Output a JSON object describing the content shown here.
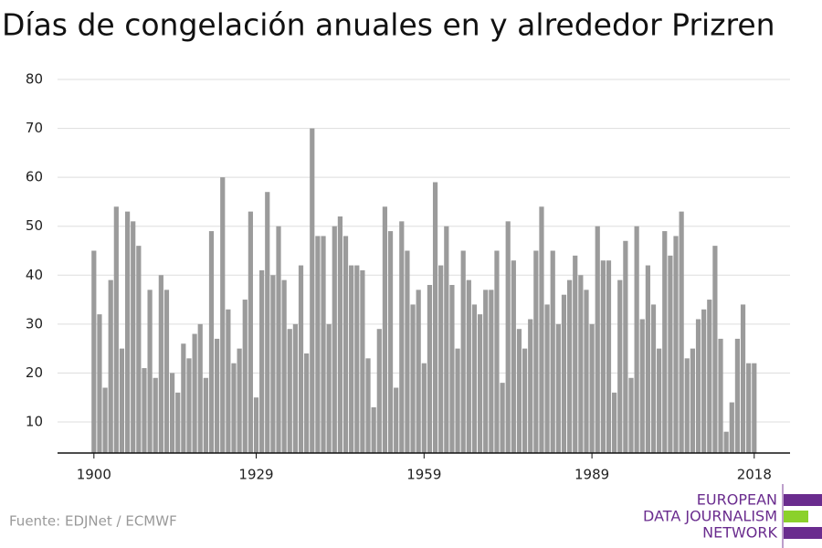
{
  "chart_data": {
    "type": "bar",
    "title": "Días de congelación anuales en y alrededor Prizren",
    "source": "Fuente: EDJNet / ECMWF",
    "logo": [
      "EUROPEAN",
      "DATA JOURNALISM",
      "NETWORK"
    ],
    "color": "#9b9b9b",
    "x": [
      1900,
      1901,
      1902,
      1903,
      1904,
      1905,
      1906,
      1907,
      1908,
      1909,
      1910,
      1911,
      1912,
      1913,
      1914,
      1915,
      1916,
      1917,
      1918,
      1919,
      1920,
      1921,
      1922,
      1923,
      1924,
      1925,
      1926,
      1927,
      1928,
      1929,
      1930,
      1931,
      1932,
      1933,
      1934,
      1935,
      1936,
      1937,
      1938,
      1939,
      1940,
      1941,
      1942,
      1943,
      1944,
      1945,
      1946,
      1947,
      1948,
      1949,
      1950,
      1951,
      1952,
      1953,
      1954,
      1955,
      1956,
      1957,
      1958,
      1959,
      1960,
      1961,
      1962,
      1963,
      1964,
      1965,
      1966,
      1967,
      1968,
      1969,
      1970,
      1971,
      1972,
      1973,
      1974,
      1975,
      1976,
      1977,
      1978,
      1979,
      1980,
      1981,
      1982,
      1983,
      1984,
      1985,
      1986,
      1987,
      1988,
      1989,
      1990,
      1991,
      1992,
      1993,
      1994,
      1995,
      1996,
      1997,
      1998,
      1999,
      2000,
      2001,
      2002,
      2003,
      2004,
      2005,
      2006,
      2007,
      2008,
      2009,
      2010,
      2011,
      2012,
      2013,
      2014,
      2015,
      2016,
      2017,
      2018
    ],
    "values": [
      45,
      32,
      17,
      39,
      54,
      25,
      53,
      51,
      46,
      21,
      37,
      19,
      40,
      37,
      20,
      16,
      26,
      23,
      28,
      30,
      19,
      49,
      27,
      60,
      33,
      22,
      25,
      35,
      53,
      15,
      41,
      57,
      40,
      50,
      39,
      29,
      30,
      42,
      24,
      70,
      48,
      48,
      30,
      50,
      52,
      48,
      42,
      42,
      41,
      23,
      13,
      29,
      54,
      49,
      17,
      51,
      45,
      34,
      37,
      22,
      38,
      59,
      42,
      50,
      38,
      25,
      45,
      39,
      34,
      32,
      37,
      37,
      45,
      18,
      51,
      43,
      29,
      25,
      31,
      45,
      54,
      34,
      45,
      30,
      36,
      39,
      44,
      40,
      37,
      30,
      50,
      43,
      43,
      16,
      39,
      47,
      19,
      50,
      31,
      42,
      34,
      25,
      49,
      44,
      48,
      53,
      23,
      25,
      31,
      33,
      35,
      46,
      27,
      8,
      14,
      27,
      34,
      22,
      22
    ],
    "xlim": [
      1893.5,
      2024.4
    ],
    "xticks": [
      1900,
      1929,
      1959,
      1989,
      2018
    ],
    "ylim": [
      3.65,
      80
    ],
    "yticks": [
      10,
      20,
      30,
      40,
      50,
      60,
      70,
      80
    ],
    "grid": true
  }
}
